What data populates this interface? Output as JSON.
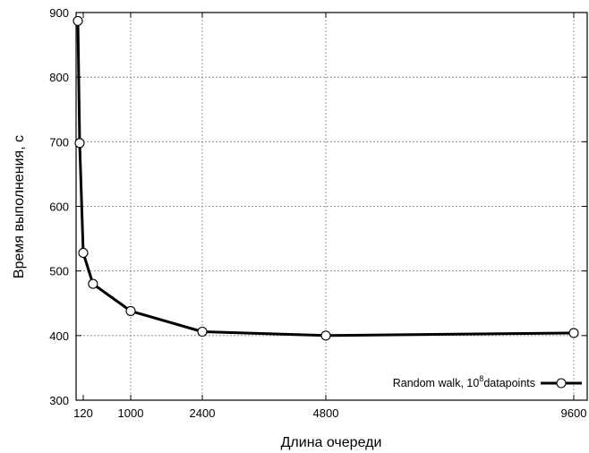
{
  "chart_data": {
    "type": "line",
    "xlabel": "Длина очереди",
    "ylabel": "Время выполнения, с",
    "xlim": [
      0,
      9600
    ],
    "ylim": [
      300,
      900
    ],
    "x_ticks": [
      120,
      1000,
      2400,
      4800,
      9600
    ],
    "y_ticks": [
      300,
      400,
      500,
      600,
      700,
      800,
      900
    ],
    "grid": true,
    "legend_position": "bottom-right",
    "series": [
      {
        "name": "Random walk, 10^8datapoints",
        "legend_text_main": "Random walk, 10",
        "legend_text_sup": "8",
        "legend_text_tail": "datapoints",
        "x": [
          30,
          60,
          120,
          300,
          1000,
          2400,
          4800,
          9600
        ],
        "y": [
          887,
          698,
          528,
          480,
          438,
          406,
          400,
          404
        ],
        "color": "#000000",
        "marker": "open-circle"
      }
    ]
  }
}
